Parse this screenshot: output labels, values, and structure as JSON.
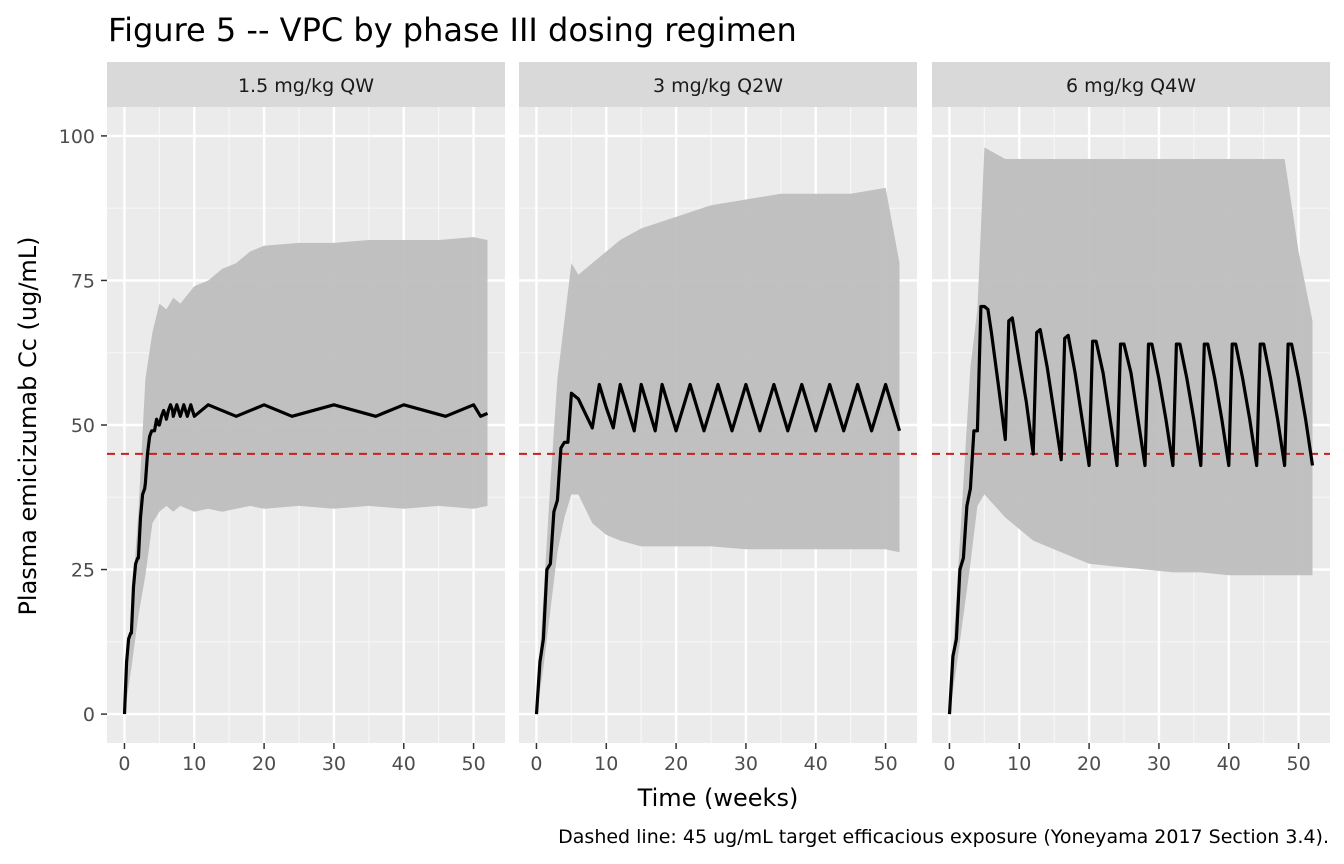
{
  "chart_data": {
    "type": "line",
    "title": "Figure 5 -- VPC by phase III dosing regimen",
    "xlabel": "Time (weeks)",
    "ylabel": "Plasma emicizumab Cc (ug/mL)",
    "caption": "Dashed line: 45 ug/mL target efficacious exposure (Yoneyama 2017 Section 3.4).",
    "xlim": [
      -2.5,
      54.5
    ],
    "ylim": [
      -5,
      105
    ],
    "x_ticks": [
      0,
      10,
      20,
      30,
      40,
      50
    ],
    "y_ticks": [
      0,
      25,
      50,
      75,
      100
    ],
    "grid": true,
    "reference_line": {
      "y": 45,
      "style": "dashed",
      "color": "#c8201e"
    },
    "colors": {
      "panel_bg": "#ebebeb",
      "strip_bg": "#d9d9d9",
      "band": "#bebebe",
      "median": "#000000"
    },
    "panels": [
      {
        "label": "1.5 mg/kg QW",
        "median": {
          "x": [
            0,
            0.3,
            0.6,
            0.9,
            1.0,
            1.3,
            1.6,
            1.9,
            2.0,
            2.3,
            2.6,
            2.9,
            3.0,
            3.3,
            3.6,
            3.9,
            4.0,
            4.3,
            4.6,
            4.9,
            5.0,
            5.3,
            5.6,
            5.9,
            6.0,
            6.3,
            6.6,
            6.9,
            7.0,
            7.5,
            8.0,
            8.5,
            9.0,
            9.5,
            10.0,
            12.0,
            16.0,
            20.0,
            24.0,
            30.0,
            36.0,
            40.0,
            46.0,
            50.0,
            51.0,
            52.0
          ],
          "y": [
            0,
            9,
            13,
            14,
            14,
            22,
            26,
            27,
            27,
            34,
            38,
            39,
            40,
            45,
            48,
            49,
            49,
            49,
            51,
            50,
            50,
            51.5,
            52.5,
            51.5,
            51,
            52.5,
            53.5,
            52.5,
            51.5,
            53.5,
            51.5,
            53.5,
            51.5,
            53.5,
            51.5,
            53.5,
            51.5,
            53.5,
            51.5,
            53.5,
            51.5,
            53.5,
            51.5,
            53.5,
            51.5,
            52
          ]
        },
        "band_upper": {
          "x": [
            0,
            1,
            2,
            3,
            4,
            5,
            6,
            7,
            8,
            10,
            12,
            14,
            16,
            18,
            20,
            25,
            30,
            35,
            40,
            45,
            50,
            52
          ],
          "y": [
            2,
            18,
            35,
            58,
            66,
            71,
            70,
            72,
            71,
            74,
            75,
            77,
            78,
            80,
            81,
            81.5,
            81.5,
            82,
            82,
            82,
            82.5,
            82
          ]
        },
        "band_lower": {
          "x": [
            0,
            1,
            2,
            3,
            4,
            5,
            6,
            7,
            8,
            10,
            12,
            14,
            16,
            18,
            20,
            25,
            30,
            35,
            40,
            45,
            50,
            52
          ],
          "y": [
            0,
            8,
            17,
            24,
            33,
            35,
            36,
            35,
            36,
            35,
            35.5,
            35,
            35.5,
            36,
            35.5,
            36,
            35.5,
            36,
            35.5,
            36,
            35.5,
            36
          ]
        }
      },
      {
        "label": "3 mg/kg Q2W",
        "median": {
          "x": [
            0,
            0.5,
            1,
            1.5,
            2,
            2.5,
            3,
            3.5,
            4,
            4.5,
            5,
            6,
            7,
            8,
            9,
            10,
            11,
            12,
            13,
            14,
            15,
            16,
            17,
            18,
            19,
            20,
            22,
            24,
            26,
            28,
            30,
            32,
            34,
            36,
            38,
            40,
            42,
            44,
            46,
            48,
            50,
            52
          ],
          "y": [
            0,
            9,
            13,
            25,
            26,
            35,
            37,
            46,
            47,
            47,
            55.5,
            54.5,
            52,
            49.5,
            57,
            53,
            49.5,
            57,
            53,
            49,
            57,
            53,
            49,
            57,
            53,
            49,
            57,
            49,
            57,
            49,
            57,
            49,
            57,
            49,
            57,
            49,
            57,
            49,
            57,
            49,
            57,
            49
          ]
        },
        "band_upper": {
          "x": [
            0,
            1,
            2,
            3,
            4,
            5,
            6,
            8,
            10,
            12,
            15,
            20,
            25,
            30,
            35,
            40,
            45,
            50,
            52
          ],
          "y": [
            2,
            20,
            40,
            58,
            68,
            78,
            76,
            78,
            80,
            82,
            84,
            86,
            88,
            89,
            90,
            90,
            90,
            91,
            78
          ]
        },
        "band_lower": {
          "x": [
            0,
            1,
            2,
            3,
            4,
            5,
            6,
            8,
            10,
            12,
            15,
            20,
            25,
            30,
            35,
            40,
            45,
            50,
            52
          ],
          "y": [
            0,
            8,
            18,
            28,
            34,
            38,
            38,
            33,
            31,
            30,
            29,
            29,
            29,
            28.5,
            28.5,
            28.5,
            28.5,
            28.5,
            28
          ]
        }
      },
      {
        "label": "6 mg/kg Q4W",
        "median": {
          "x": [
            0,
            0.5,
            1,
            1.5,
            2,
            2.5,
            3,
            3.5,
            4,
            4.5,
            5,
            5.5,
            6,
            7,
            8,
            8.5,
            9,
            10,
            11,
            12,
            12.5,
            13,
            14,
            15,
            16,
            16.5,
            17,
            18,
            19,
            20,
            20.5,
            21,
            22,
            23,
            24,
            24.5,
            25,
            26,
            27,
            28,
            28.5,
            29,
            30,
            31,
            32,
            32.5,
            33,
            34,
            35,
            36,
            36.5,
            37,
            38,
            39,
            40,
            40.5,
            41,
            42,
            43,
            44,
            44.5,
            45,
            46,
            47,
            48,
            48.5,
            49,
            50,
            51,
            52
          ],
          "y": [
            0,
            10,
            13,
            25,
            27,
            36,
            39,
            49,
            49,
            70.5,
            70.5,
            70,
            66,
            57,
            47.5,
            68,
            68.5,
            61,
            54,
            45,
            66,
            66.5,
            60,
            52,
            44,
            65,
            65.5,
            59,
            51,
            43,
            64.5,
            64.5,
            59,
            51,
            43,
            64,
            64,
            59,
            51,
            43,
            64,
            64,
            58,
            51,
            43,
            64,
            64,
            58,
            51,
            43,
            64,
            64,
            58,
            51,
            43,
            64,
            64,
            58,
            51,
            43,
            64,
            64,
            58,
            51,
            43,
            64,
            64,
            58,
            51,
            43
          ]
        },
        "band_upper": {
          "x": [
            0,
            1,
            2,
            3,
            4,
            5,
            8,
            12,
            16,
            20,
            24,
            28,
            32,
            36,
            40,
            44,
            48,
            50,
            52
          ],
          "y": [
            2,
            20,
            40,
            60,
            70,
            98,
            96,
            96,
            96,
            96,
            96,
            96,
            96,
            96,
            96,
            96,
            96,
            80,
            68
          ]
        },
        "band_lower": {
          "x": [
            0,
            1,
            2,
            3,
            4,
            5,
            8,
            12,
            16,
            20,
            24,
            28,
            32,
            36,
            40,
            44,
            48,
            50,
            52
          ],
          "y": [
            0,
            8,
            17,
            26,
            36,
            38,
            34,
            30,
            28,
            26,
            25.5,
            25,
            24.5,
            24.5,
            24,
            24,
            24,
            24,
            24
          ]
        }
      }
    ]
  }
}
